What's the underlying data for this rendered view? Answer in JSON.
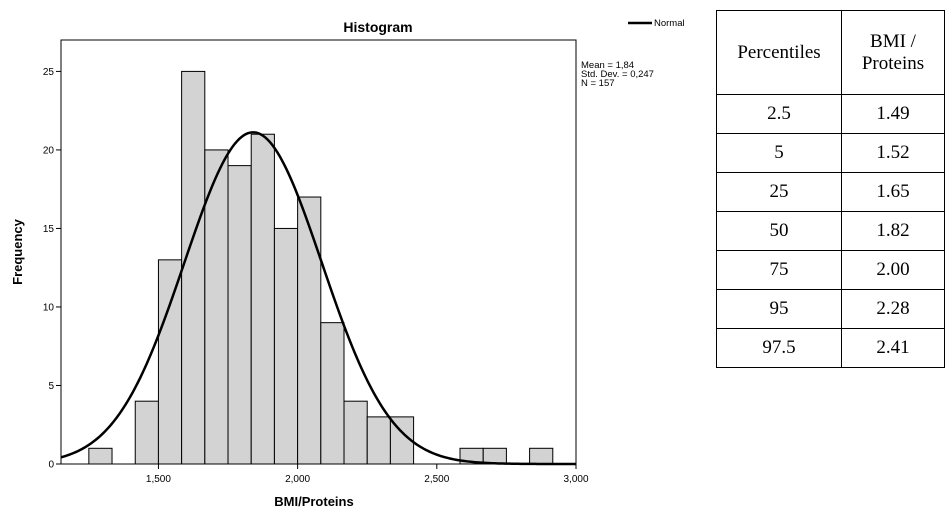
{
  "chart_data": {
    "type": "bar",
    "title": "Histogram",
    "xlabel": "BMI/Proteins",
    "ylabel": "Frequency",
    "xlim": [
      1.15,
      3.0
    ],
    "ylim": [
      0,
      27
    ],
    "x_ticks": [
      1.5,
      2.0,
      2.5,
      3.0
    ],
    "x_tick_labels": [
      "1,500",
      "2,000",
      "2,500",
      "3,000"
    ],
    "y_ticks": [
      0,
      5,
      10,
      15,
      20,
      25
    ],
    "y_tick_labels": [
      "0",
      "5",
      "10",
      "15",
      "20",
      "25"
    ],
    "bin_width": 0.0833,
    "bin_starts": [
      1.25,
      1.4167,
      1.5,
      1.5833,
      1.6667,
      1.75,
      1.8333,
      1.9167,
      2.0,
      2.0833,
      2.1667,
      2.25,
      2.3333,
      2.5833,
      2.6667,
      2.8333
    ],
    "values": [
      1,
      4,
      13,
      25,
      20,
      19,
      21,
      15,
      17,
      9,
      4,
      3,
      3,
      1,
      1,
      1
    ],
    "normal_curve": {
      "mean": 1.84,
      "sd": 0.247,
      "n": 157
    },
    "stats": [
      "Mean = 1,84",
      "Std. Dev. = 0,247",
      "N = 157"
    ],
    "legend": {
      "label": "Normal",
      "position": "top-right"
    },
    "grid": false,
    "bar_color": "#d3d3d3",
    "curve_color": "#000000"
  },
  "table": {
    "headers": [
      "Percentiles",
      "BMI / Proteins"
    ],
    "rows": [
      [
        "2.5",
        "1.49"
      ],
      [
        "5",
        "1.52"
      ],
      [
        "25",
        "1.65"
      ],
      [
        "50",
        "1.82"
      ],
      [
        "75",
        "2.00"
      ],
      [
        "95",
        "2.28"
      ],
      [
        "97.5",
        "2.41"
      ]
    ]
  }
}
